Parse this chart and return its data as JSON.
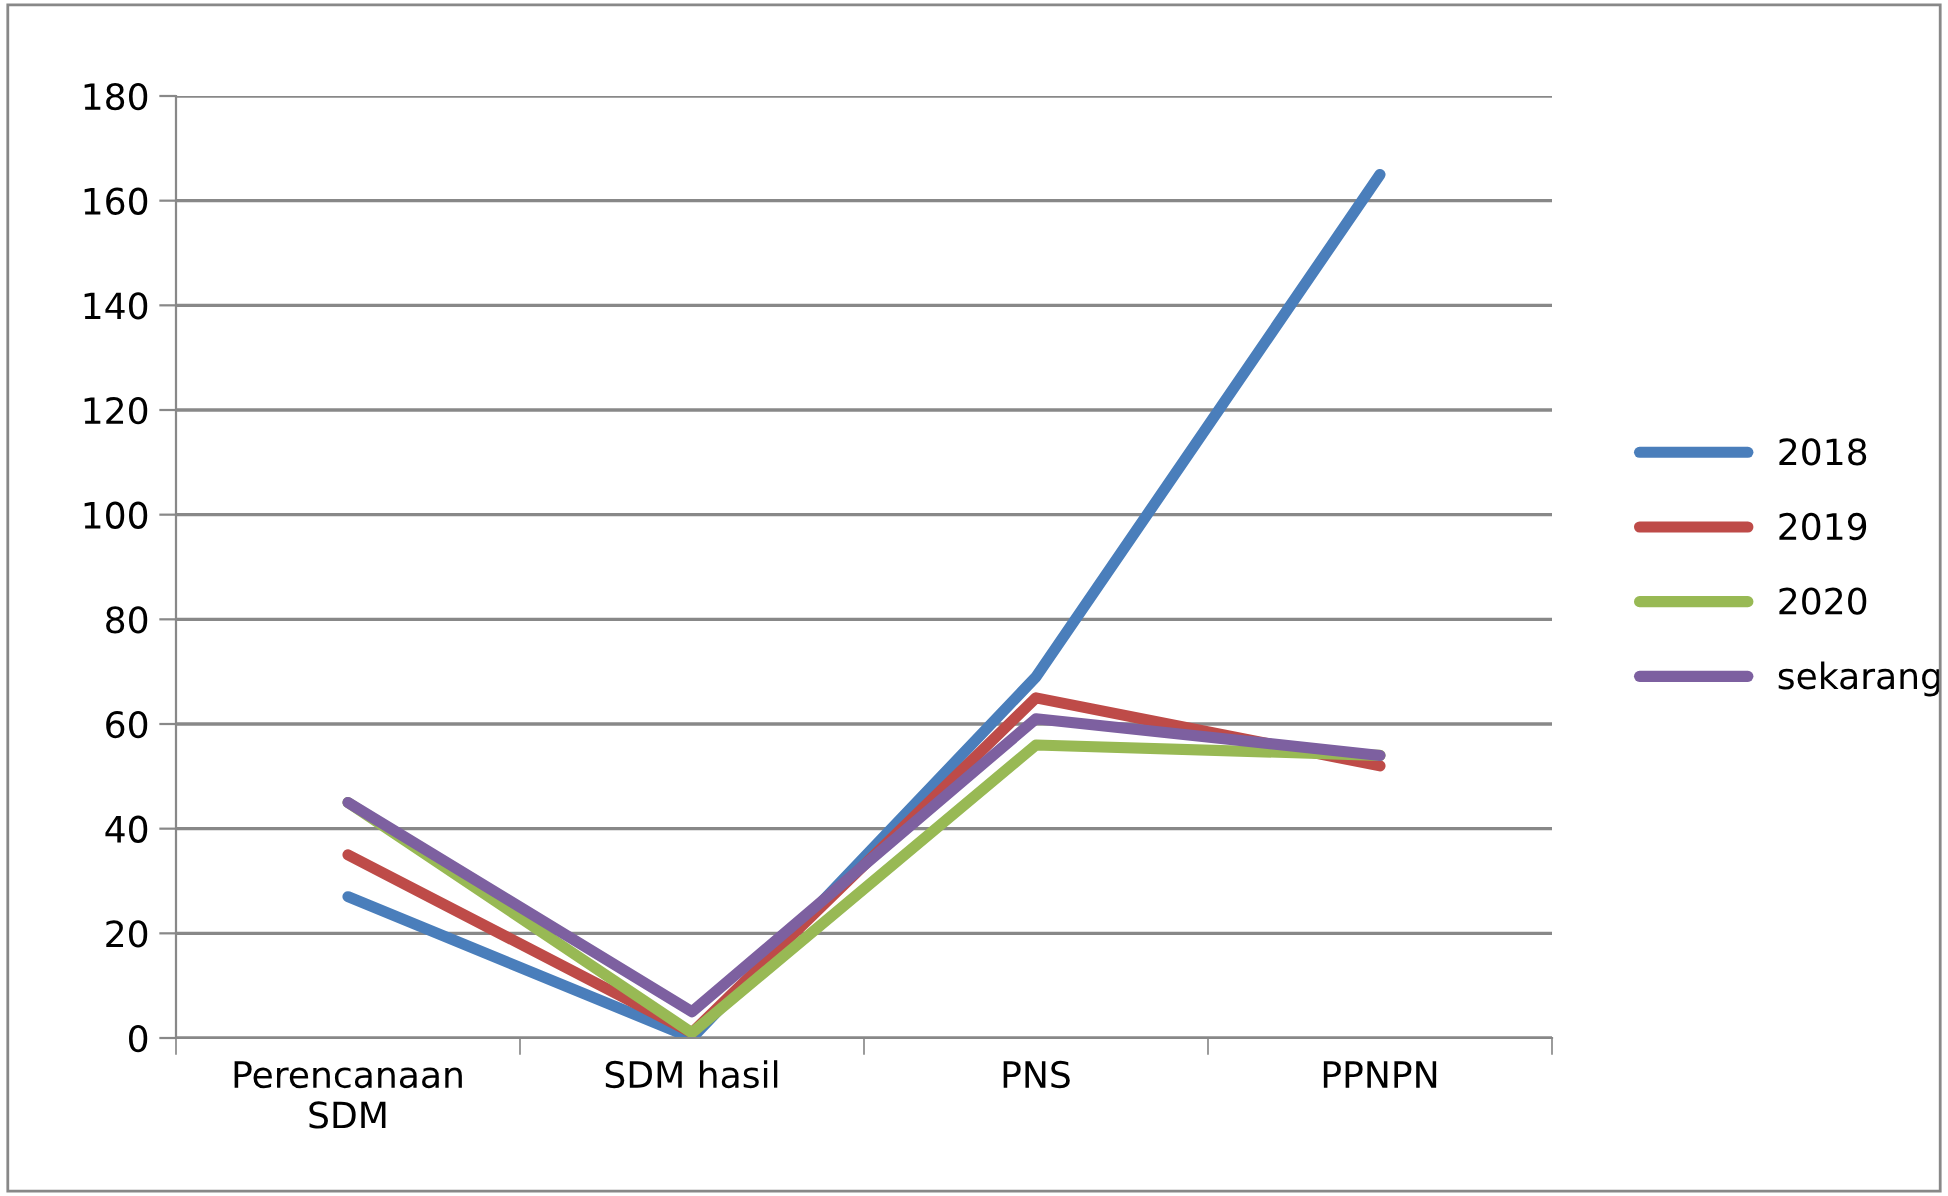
{
  "chart_data": {
    "type": "line",
    "categories": [
      "Perencanaan\nSDM",
      "SDM hasil",
      "PNS",
      "PPNPN"
    ],
    "series": [
      {
        "name": "2018",
        "color": "#4a7ebb",
        "values": [
          27,
          0,
          69,
          165
        ]
      },
      {
        "name": "2019",
        "color": "#be4b48",
        "values": [
          35,
          1,
          65,
          52
        ]
      },
      {
        "name": "2020",
        "color": "#98b954",
        "values": [
          45,
          1,
          56,
          54
        ]
      },
      {
        "name": "sekarang",
        "color": "#7d60a0",
        "values": [
          45,
          5,
          61,
          54
        ]
      }
    ],
    "ylim": [
      0,
      180
    ],
    "yticks": [
      0,
      20,
      40,
      60,
      80,
      100,
      120,
      140,
      160,
      180
    ],
    "grid": "y",
    "legend": "right",
    "marker": "none",
    "line_style": "solid"
  }
}
